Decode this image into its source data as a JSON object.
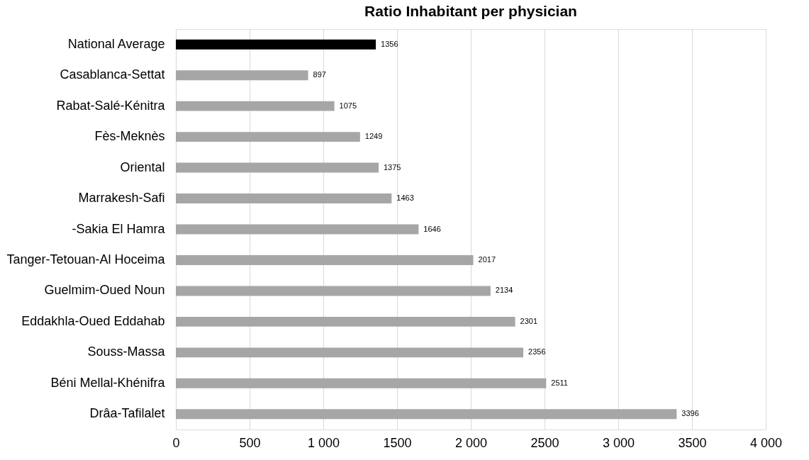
{
  "chart_data": {
    "type": "bar",
    "orientation": "horizontal",
    "title": "Ratio Inhabitant per physician",
    "categories": [
      "National Average",
      "Casablanca-Settat",
      "Rabat-Salé-Kénitra",
      "Fès-Meknès",
      "Oriental",
      "Marrakesh-Safi",
      "-Sakia El Hamra",
      "Tanger-Tetouan-Al Hoceima",
      "Guelmim-Oued Noun",
      "Eddakhla-Oued Eddahab",
      "Souss-Massa",
      "Béni Mellal-Khénifra",
      "Drâa-Tafilalet"
    ],
    "values": [
      1356,
      897,
      1075,
      1249,
      1375,
      1463,
      1646,
      2017,
      2134,
      2301,
      2356,
      2511,
      3396
    ],
    "colors": [
      "#000000",
      "#a6a6a6",
      "#a6a6a6",
      "#a6a6a6",
      "#a6a6a6",
      "#a6a6a6",
      "#a6a6a6",
      "#a6a6a6",
      "#a6a6a6",
      "#a6a6a6",
      "#a6a6a6",
      "#a6a6a6",
      "#a6a6a6"
    ],
    "xlim": [
      0,
      4000
    ],
    "xticks": [
      0,
      500,
      {
        "value": 1000,
        "label": "1 000"
      },
      1500,
      {
        "value": 2000,
        "label": "2 000"
      },
      2500,
      {
        "value": 3000,
        "label": "3 000"
      },
      3500,
      {
        "value": 4000,
        "label": "4 000"
      }
    ],
    "grid": "x",
    "data_labels": true,
    "legend": false
  }
}
